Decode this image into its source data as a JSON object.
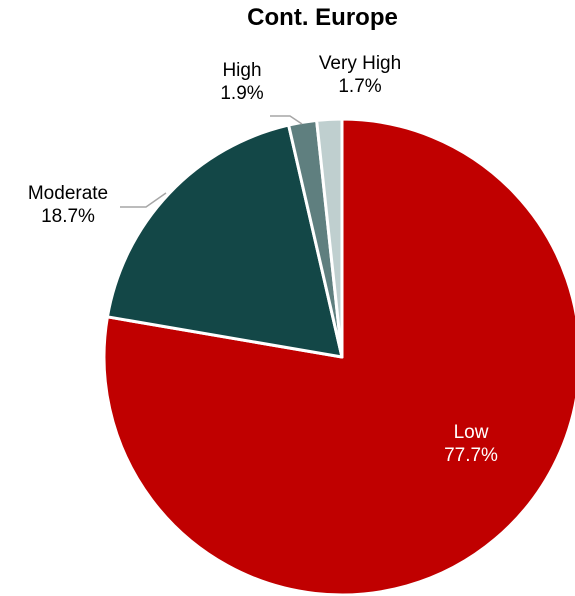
{
  "chart_data": {
    "type": "pie",
    "title": "Cont. Europe",
    "slices": [
      {
        "label": "Low",
        "value": 77.7,
        "value_label": "77.7%",
        "color": "#C00000",
        "label_color": "#ffffff"
      },
      {
        "label": "Moderate",
        "value": 18.7,
        "value_label": "18.7%",
        "color": "#134747",
        "label_color": "#000000"
      },
      {
        "label": "High",
        "value": 1.9,
        "value_label": "1.9%",
        "color": "#5F7F7F",
        "label_color": "#000000"
      },
      {
        "label": "Very High",
        "value": 1.7,
        "value_label": "1.7%",
        "color": "#BFCFCF",
        "label_color": "#000000"
      }
    ],
    "start_angle_deg": 0,
    "direction": "clockwise",
    "slice_border_color": "#ffffff",
    "leader_line_color": "#A6A6A6"
  }
}
